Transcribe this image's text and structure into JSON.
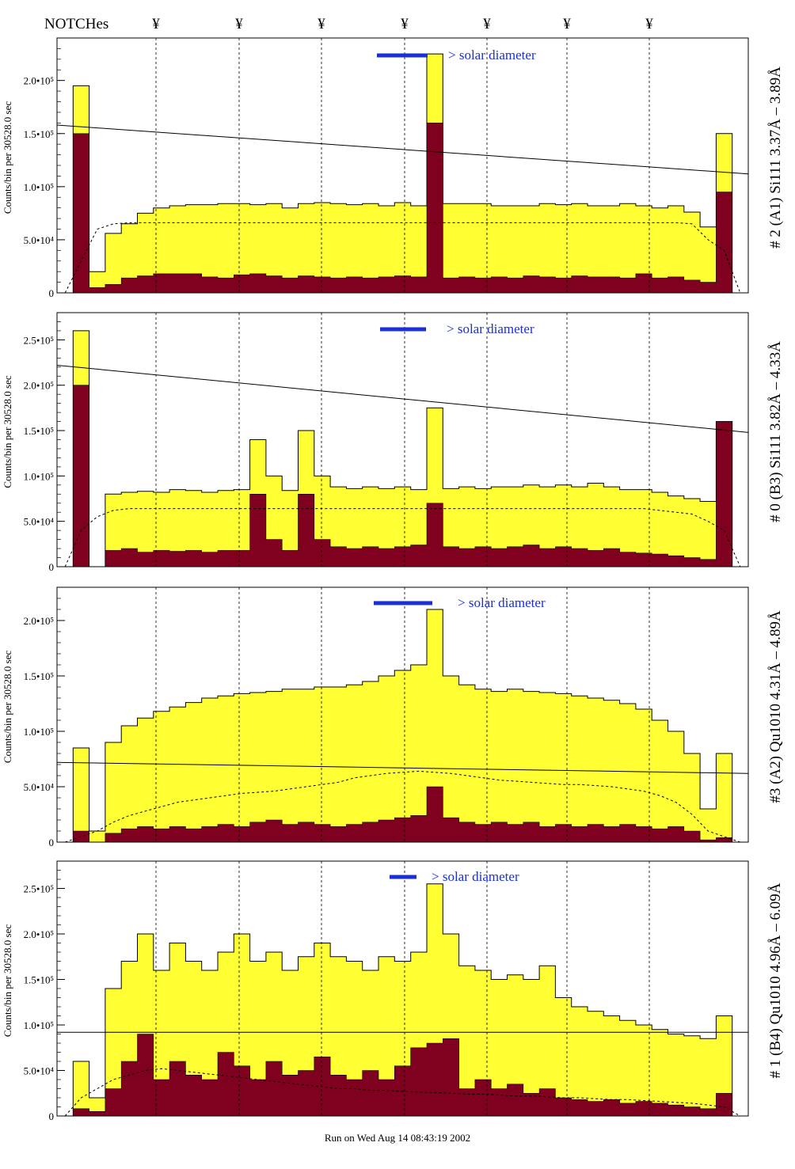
{
  "header": {
    "notches_label": "NOTCHes",
    "notch_symbol": "¥",
    "notch_count": 7
  },
  "footer": {
    "run_text": "Run on Wed Aug 14 08:43:19 2002"
  },
  "colors": {
    "fill_total": "#ffff33",
    "fill_low": "#800020",
    "solar_bar": "#1a2fd6",
    "solar_text": "#1a2fd6"
  },
  "chart_data": [
    {
      "type": "histogram",
      "panel_label": "# 2 (A1) Si111  3.37Å – 3.89Å",
      "ylabel": "Counts/bin per  30528.0 sec",
      "yticks": [
        "0",
        "5.0•10⁴",
        "1.0•10⁵",
        "1.5•10⁵",
        "2.0•10⁵"
      ],
      "ylim": [
        0,
        240000
      ],
      "solar_label": "> solar diameter",
      "fit_line": [
        158000,
        112000
      ],
      "series": [
        {
          "name": "total",
          "values": [
            0,
            195000,
            20000,
            56000,
            65000,
            75000,
            80000,
            82000,
            83000,
            83000,
            84000,
            84000,
            83000,
            84000,
            80000,
            84000,
            85000,
            84000,
            83000,
            84000,
            82000,
            85000,
            82000,
            225000,
            84000,
            84000,
            84000,
            82000,
            82000,
            82000,
            84000,
            83000,
            84000,
            82000,
            82000,
            84000,
            82000,
            80000,
            82000,
            76000,
            62000,
            150000,
            0
          ]
        },
        {
          "name": "low",
          "values": [
            0,
            150000,
            5000,
            8000,
            14000,
            16000,
            18000,
            18000,
            18000,
            15000,
            14000,
            17000,
            18000,
            16000,
            14000,
            16000,
            15000,
            14000,
            15000,
            14000,
            15000,
            16000,
            15000,
            160000,
            14000,
            15000,
            14000,
            15000,
            14000,
            16000,
            15000,
            14000,
            16000,
            15000,
            15000,
            14000,
            18000,
            14000,
            15000,
            12000,
            10000,
            95000,
            0
          ]
        },
        {
          "name": "model",
          "values": [
            0,
            30000,
            60000,
            65000,
            66000,
            66000,
            66000,
            66000,
            66000,
            66000,
            66000,
            66000,
            66000,
            66000,
            66000,
            66000,
            66000,
            66000,
            66000,
            66000,
            66000,
            66000,
            66000,
            66000,
            66000,
            66000,
            66000,
            66000,
            66000,
            66000,
            66000,
            66000,
            66000,
            66000,
            66000,
            66000,
            66000,
            66000,
            66000,
            65000,
            50000,
            40000,
            0
          ]
        }
      ]
    },
    {
      "type": "histogram",
      "panel_label": "# 0 (B3) Si111  3.82Å – 4.33Å",
      "ylabel": "Counts/bin per  30528.0 sec",
      "yticks": [
        "0",
        "5.0•10⁴",
        "1.0•10⁵",
        "1.5•10⁵",
        "2.0•10⁵",
        "2.5•10⁵"
      ],
      "ylim": [
        0,
        280000
      ],
      "solar_label": "> solar diameter",
      "fit_line": [
        222000,
        148000
      ],
      "series": [
        {
          "name": "total",
          "values": [
            0,
            260000,
            0,
            80000,
            82000,
            83000,
            82000,
            85000,
            84000,
            82000,
            84000,
            85000,
            140000,
            100000,
            84000,
            150000,
            100000,
            88000,
            86000,
            88000,
            86000,
            88000,
            85000,
            175000,
            86000,
            88000,
            86000,
            88000,
            88000,
            90000,
            88000,
            90000,
            88000,
            92000,
            88000,
            85000,
            85000,
            82000,
            78000,
            75000,
            72000,
            160000,
            0
          ]
        },
        {
          "name": "low",
          "values": [
            0,
            200000,
            0,
            18000,
            20000,
            16000,
            18000,
            17000,
            18000,
            16000,
            18000,
            18000,
            80000,
            30000,
            18000,
            80000,
            30000,
            22000,
            20000,
            22000,
            20000,
            22000,
            24000,
            70000,
            22000,
            20000,
            22000,
            20000,
            22000,
            24000,
            20000,
            22000,
            20000,
            18000,
            20000,
            16000,
            15000,
            14000,
            12000,
            10000,
            8000,
            160000,
            0
          ]
        },
        {
          "name": "model",
          "values": [
            0,
            40000,
            55000,
            62000,
            64000,
            64000,
            64000,
            64000,
            64000,
            64000,
            64000,
            64000,
            64000,
            64000,
            64000,
            64000,
            64000,
            64000,
            64000,
            64000,
            64000,
            64000,
            64000,
            64000,
            64000,
            64000,
            64000,
            64000,
            64000,
            64000,
            64000,
            64000,
            64000,
            64000,
            64000,
            64000,
            64000,
            62000,
            60000,
            58000,
            50000,
            40000,
            0
          ]
        }
      ]
    },
    {
      "type": "histogram",
      "panel_label": "#3 (A2) Qu1010  4.31Å – 4.89Å",
      "ylabel": "Counts/bin per  30528.0 sec",
      "yticks": [
        "0",
        "5.0•10⁴",
        "1.0•10⁵",
        "1.5•10⁵",
        "2.0•10⁵"
      ],
      "ylim": [
        0,
        230000
      ],
      "solar_label": "> solar diameter",
      "fit_line": [
        72000,
        62000
      ],
      "series": [
        {
          "name": "total",
          "values": [
            0,
            85000,
            10000,
            90000,
            105000,
            112000,
            118000,
            122000,
            126000,
            130000,
            132000,
            134000,
            135000,
            136000,
            138000,
            138000,
            140000,
            140000,
            142000,
            145000,
            150000,
            155000,
            160000,
            210000,
            150000,
            142000,
            138000,
            136000,
            138000,
            136000,
            135000,
            134000,
            132000,
            130000,
            128000,
            125000,
            120000,
            110000,
            100000,
            80000,
            30000,
            80000,
            0
          ]
        },
        {
          "name": "low",
          "values": [
            0,
            10000,
            0,
            8000,
            12000,
            14000,
            12000,
            14000,
            12000,
            14000,
            16000,
            14000,
            18000,
            20000,
            16000,
            18000,
            16000,
            14000,
            16000,
            18000,
            20000,
            22000,
            24000,
            50000,
            22000,
            18000,
            16000,
            18000,
            16000,
            18000,
            14000,
            16000,
            14000,
            16000,
            14000,
            16000,
            14000,
            12000,
            14000,
            10000,
            2000,
            4000,
            0
          ]
        },
        {
          "name": "model",
          "values": [
            0,
            5000,
            10000,
            18000,
            24000,
            28000,
            32000,
            36000,
            38000,
            40000,
            42000,
            44000,
            45000,
            46000,
            48000,
            50000,
            52000,
            54000,
            58000,
            60000,
            62000,
            63000,
            64000,
            63000,
            62000,
            60000,
            58000,
            56000,
            55000,
            54000,
            53000,
            52000,
            52000,
            51000,
            50000,
            48000,
            46000,
            42000,
            36000,
            25000,
            10000,
            5000,
            0
          ]
        }
      ]
    },
    {
      "type": "histogram",
      "panel_label": "# 1 (B4) Qu1010 4.96Å – 6.09Å",
      "ylabel": "Counts/bin per  30528.0 sec",
      "yticks": [
        "0",
        "5.0•10⁴",
        "1.0•10⁵",
        "1.5•10⁵",
        "2.0•10⁵",
        "2.5•10⁵"
      ],
      "ylim": [
        0,
        280000
      ],
      "solar_label": "> solar diameter",
      "fit_line": [
        92000,
        92000
      ],
      "series": [
        {
          "name": "total",
          "values": [
            0,
            60000,
            20000,
            140000,
            170000,
            200000,
            160000,
            190000,
            170000,
            160000,
            180000,
            200000,
            170000,
            180000,
            160000,
            175000,
            190000,
            175000,
            170000,
            160000,
            175000,
            170000,
            180000,
            255000,
            200000,
            165000,
            160000,
            150000,
            155000,
            150000,
            165000,
            130000,
            120000,
            115000,
            110000,
            105000,
            100000,
            95000,
            90000,
            88000,
            85000,
            110000,
            0
          ]
        },
        {
          "name": "low",
          "values": [
            0,
            8000,
            5000,
            30000,
            60000,
            90000,
            40000,
            60000,
            45000,
            40000,
            70000,
            55000,
            40000,
            60000,
            45000,
            50000,
            65000,
            45000,
            40000,
            50000,
            40000,
            55000,
            75000,
            80000,
            85000,
            30000,
            40000,
            30000,
            35000,
            25000,
            30000,
            20000,
            18000,
            16000,
            18000,
            14000,
            16000,
            14000,
            12000,
            10000,
            8000,
            25000,
            0
          ]
        },
        {
          "name": "model",
          "values": [
            0,
            20000,
            30000,
            40000,
            45000,
            50000,
            52000,
            50000,
            48000,
            46000,
            44000,
            42000,
            40000,
            38000,
            36000,
            34000,
            32000,
            30000,
            30000,
            28000,
            28000,
            27000,
            26000,
            26000,
            25000,
            24000,
            24000,
            23000,
            22000,
            22000,
            21000,
            20000,
            20000,
            19000,
            18000,
            18000,
            17000,
            16000,
            15000,
            14000,
            12000,
            10000,
            0
          ]
        }
      ]
    }
  ]
}
